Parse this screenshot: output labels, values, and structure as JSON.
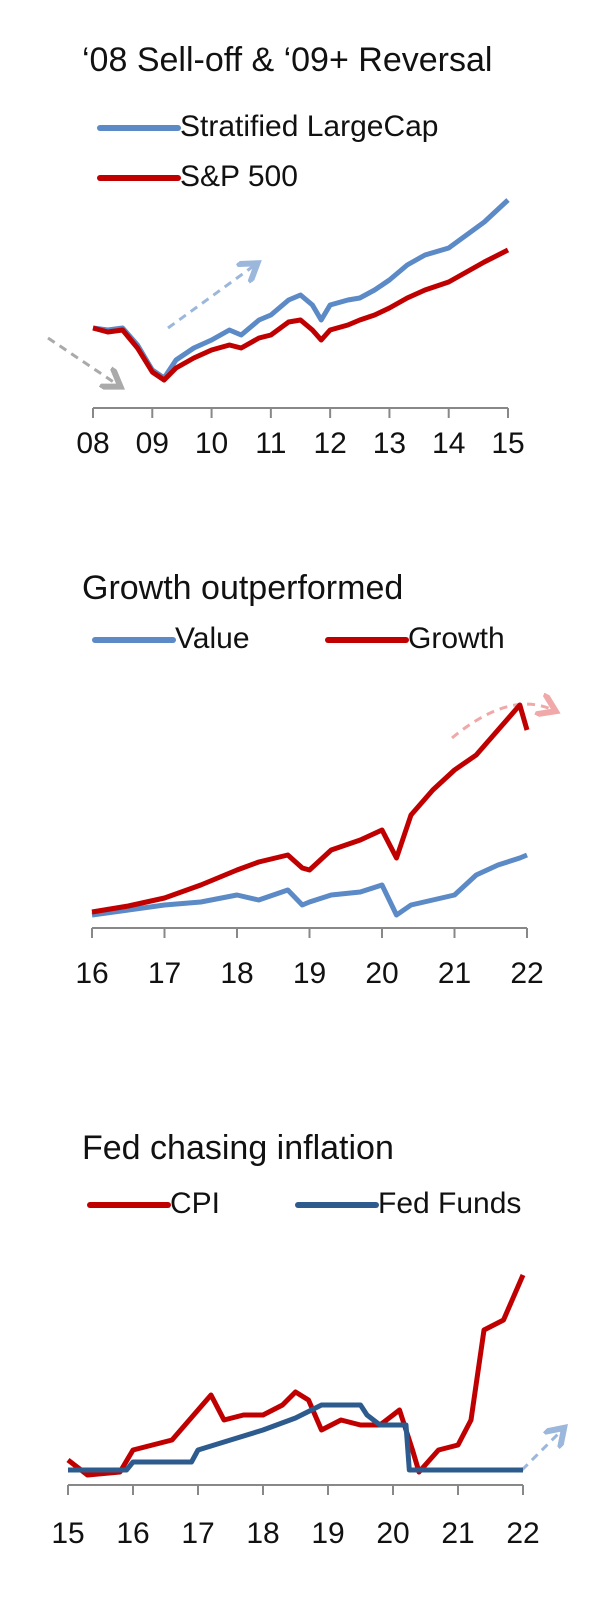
{
  "chart_data": [
    {
      "type": "line",
      "title": "‘08 Sell-off & ‘09+ Reversal",
      "x": [
        2008.0,
        2008.25,
        2008.5,
        2008.75,
        2009.0,
        2009.2,
        2009.4,
        2009.7,
        2010.0,
        2010.3,
        2010.5,
        2010.8,
        2011.0,
        2011.3,
        2011.5,
        2011.7,
        2011.85,
        2012.0,
        2012.3,
        2012.5,
        2012.75,
        2013.0,
        2013.3,
        2013.6,
        2014.0,
        2014.3,
        2014.6,
        2015.0
      ],
      "series": [
        {
          "name": "Stratified LargeCap",
          "color": "#5b8ac6",
          "values": [
            70,
            68,
            70,
            53,
            28,
            20,
            38,
            50,
            58,
            68,
            63,
            78,
            83,
            98,
            103,
            93,
            78,
            93,
            98,
            100,
            108,
            118,
            133,
            143,
            150,
            163,
            176,
            198
          ]
        },
        {
          "name": "S&P 500",
          "color": "#c00000",
          "values": [
            70,
            66,
            68,
            50,
            26,
            18,
            30,
            40,
            48,
            53,
            50,
            60,
            63,
            76,
            78,
            68,
            58,
            68,
            73,
            78,
            83,
            90,
            100,
            108,
            116,
            126,
            136,
            148
          ]
        }
      ],
      "xlim": [
        2008,
        2015
      ],
      "xticks": [
        {
          "value": 2008,
          "label": "08"
        },
        {
          "value": 2009,
          "label": "09"
        },
        {
          "value": 2010,
          "label": "10"
        },
        {
          "value": 2011,
          "label": "11"
        },
        {
          "value": 2012,
          "label": "12"
        },
        {
          "value": 2013,
          "label": "13"
        },
        {
          "value": 2014,
          "label": "14"
        },
        {
          "value": 2015,
          "label": "15"
        }
      ],
      "ylim": [
        0,
        210
      ]
    },
    {
      "type": "line",
      "title": "Growth outperformed",
      "x": [
        2016.0,
        2016.5,
        2017.0,
        2017.5,
        2018.0,
        2018.3,
        2018.7,
        2018.9,
        2019.0,
        2019.3,
        2019.7,
        2020.0,
        2020.2,
        2020.4,
        2020.7,
        2021.0,
        2021.3,
        2021.6,
        2021.9,
        2022.0
      ],
      "series": [
        {
          "name": "Value",
          "color": "#5b8ac6",
          "values": [
            3,
            8,
            13,
            16,
            23,
            18,
            28,
            13,
            16,
            23,
            26,
            33,
            3,
            13,
            18,
            23,
            43,
            53,
            60,
            63
          ]
        },
        {
          "name": "Growth",
          "color": "#c00000",
          "values": [
            6,
            12,
            20,
            33,
            48,
            56,
            63,
            50,
            48,
            68,
            78,
            88,
            60,
            103,
            128,
            148,
            163,
            188,
            213,
            188
          ]
        }
      ],
      "xlim": [
        2016,
        2022
      ],
      "xticks": [
        {
          "value": 2016,
          "label": "16"
        },
        {
          "value": 2017,
          "label": "17"
        },
        {
          "value": 2018,
          "label": "18"
        },
        {
          "value": 2019,
          "label": "19"
        },
        {
          "value": 2020,
          "label": "20"
        },
        {
          "value": 2021,
          "label": "21"
        },
        {
          "value": 2022,
          "label": "22"
        }
      ],
      "ylim": [
        0,
        228
      ]
    },
    {
      "type": "line",
      "title": "Fed chasing inflation",
      "x": [
        2015.0,
        2015.3,
        2015.8,
        2016.0,
        2016.3,
        2016.6,
        2017.0,
        2017.2,
        2017.4,
        2017.7,
        2018.0,
        2018.3,
        2018.5,
        2018.7,
        2018.9,
        2019.2,
        2019.5,
        2019.8,
        2020.1,
        2020.3,
        2020.4,
        2020.7,
        2021.0,
        2021.2,
        2021.4,
        2021.7,
        2021.9,
        2022.0
      ],
      "series": [
        {
          "name": "CPI",
          "color": "#c00000",
          "values": [
            15,
            0,
            3,
            25,
            30,
            35,
            65,
            80,
            55,
            60,
            60,
            70,
            83,
            75,
            45,
            55,
            50,
            50,
            65,
            25,
            3,
            25,
            30,
            55,
            145,
            155,
            185,
            200
          ]
        },
        {
          "name": "Fed Funds",
          "color": "#2e5b8e",
          "x": [
            2015.0,
            2015.9,
            2016.0,
            2016.9,
            2017.0,
            2017.5,
            2018.0,
            2018.5,
            2018.9,
            2019.5,
            2019.6,
            2019.8,
            2020.2,
            2020.25,
            2022.0
          ],
          "values": [
            5,
            5,
            13,
            13,
            25,
            35,
            45,
            57,
            70,
            70,
            60,
            50,
            50,
            5,
            5
          ]
        }
      ],
      "xlim": [
        2015,
        2022
      ],
      "xticks": [
        {
          "value": 2015,
          "label": "15"
        },
        {
          "value": 2016,
          "label": "16"
        },
        {
          "value": 2017,
          "label": "17"
        },
        {
          "value": 2018,
          "label": "18"
        },
        {
          "value": 2019,
          "label": "19"
        },
        {
          "value": 2020,
          "label": "20"
        },
        {
          "value": 2021,
          "label": "21"
        },
        {
          "value": 2022,
          "label": "22"
        }
      ],
      "ylim": [
        0,
        205
      ]
    }
  ]
}
